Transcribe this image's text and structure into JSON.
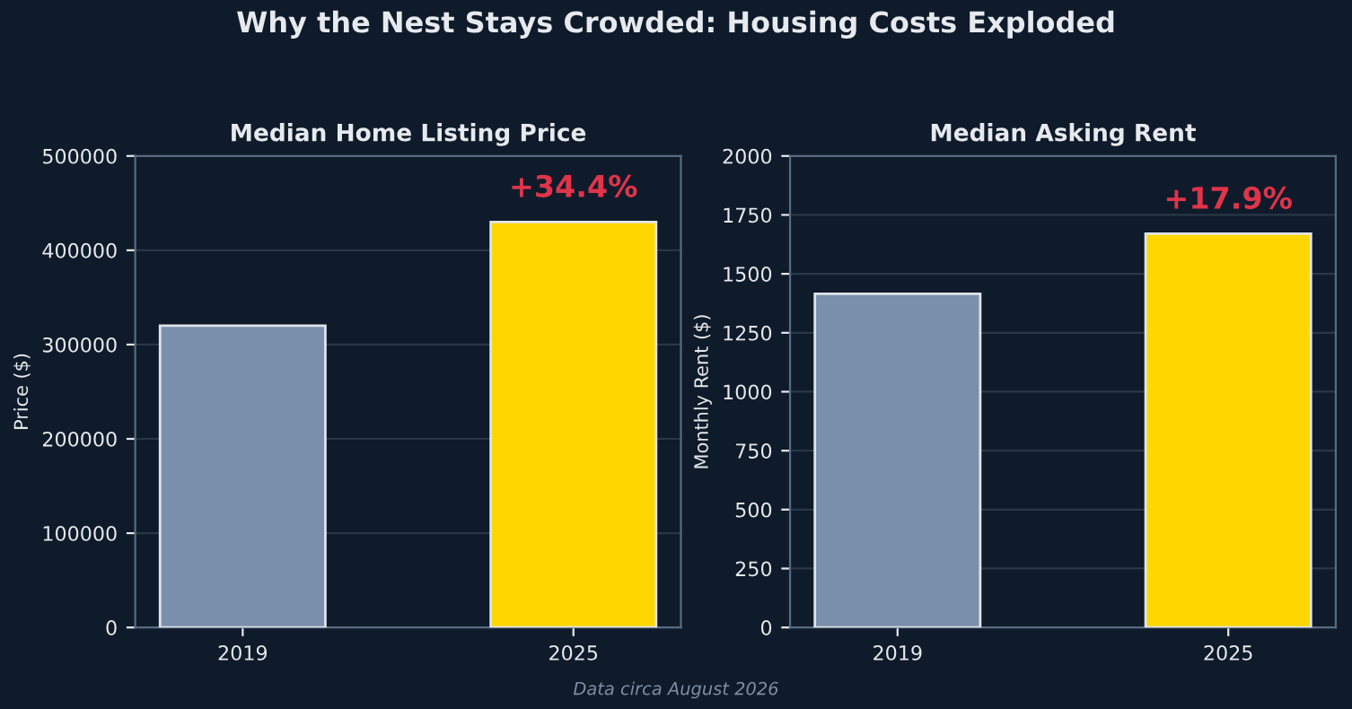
{
  "chart_data": [
    {
      "type": "other",
      "title": "Why the Nest Stays Crowded: Housing Costs Exploded",
      "annotations": [
        "Data circa August 2026"
      ]
    },
    {
      "type": "bar",
      "title": "Median Home Listing Price",
      "ylabel": "Price ($)",
      "categories": [
        "2019",
        "2025"
      ],
      "values": [
        320000,
        430000
      ],
      "colors": [
        "#7a8fab",
        "#ffd700"
      ],
      "ylim": [
        0,
        500000
      ],
      "yticks": [
        0,
        100000,
        200000,
        300000,
        400000,
        500000
      ],
      "grid": "y",
      "annotations": [
        {
          "text": "+34.4%",
          "x": "2025",
          "y": 430000
        }
      ]
    },
    {
      "type": "bar",
      "title": "Median Asking Rent",
      "ylabel": "Monthly Rent ($)",
      "categories": [
        "2019",
        "2025"
      ],
      "values": [
        1415,
        1670
      ],
      "colors": [
        "#7a8fab",
        "#ffd700"
      ],
      "ylim": [
        0,
        2000
      ],
      "yticks": [
        0,
        250,
        500,
        750,
        1000,
        1250,
        1500,
        1750,
        2000
      ],
      "grid": "y",
      "annotations": [
        {
          "text": "+17.9%",
          "x": "2025",
          "y": 1670
        }
      ]
    }
  ]
}
